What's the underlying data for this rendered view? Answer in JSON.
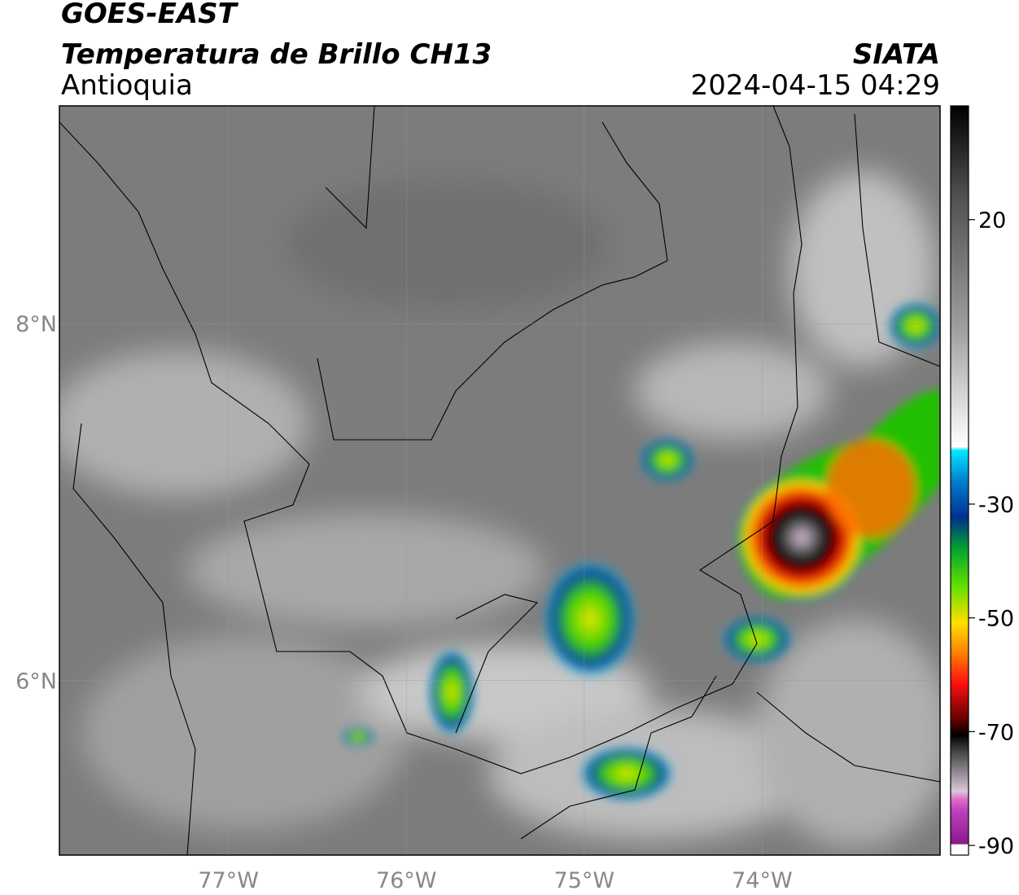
{
  "header": {
    "title": "GOES-EAST",
    "subtitle": "Temperatura de Brillo CH13",
    "region": "Antioquia",
    "source": "SIATA",
    "datetime": "2024-04-15 04:29"
  },
  "map": {
    "lonlim": [
      -77.95,
      -73.0
    ],
    "latlim": [
      5.02,
      9.22
    ],
    "lon_ticks": [
      {
        "value": -77,
        "label": "77°W"
      },
      {
        "value": -76,
        "label": "76°W"
      },
      {
        "value": -75,
        "label": "75°W"
      },
      {
        "value": -74,
        "label": "74°W"
      }
    ],
    "lat_ticks": [
      {
        "value": 8,
        "label": "8°N"
      },
      {
        "value": 6,
        "label": "6°N"
      }
    ]
  },
  "colorbar": {
    "lim": [
      -91.7,
      40
    ],
    "ticks": [
      20,
      -30,
      -50,
      -70,
      -90
    ]
  }
}
